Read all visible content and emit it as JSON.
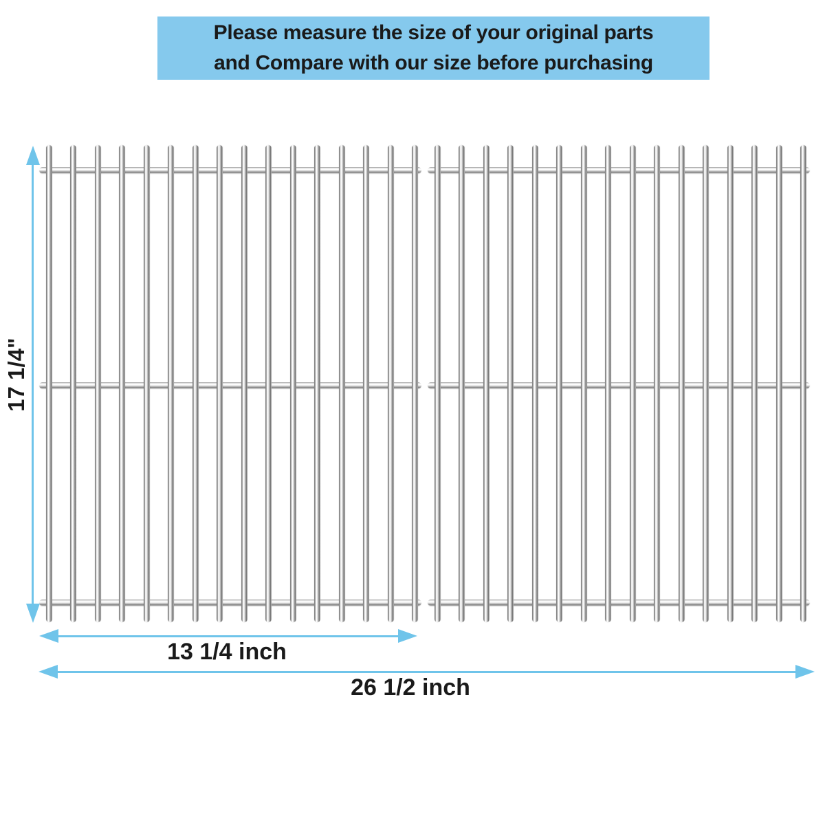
{
  "banner": {
    "line1": "Please measure the size of your original parts",
    "line2": "and Compare with our size before purchasing"
  },
  "dimensions": {
    "height_label": "17 1/4\"",
    "left_width_label": "13 1/4 inch",
    "total_width_label": "26 1/2 inch"
  },
  "grates": {
    "count": 2,
    "rods_per_grate": 16,
    "crossbars_per_grate": 3
  },
  "colors": {
    "banner_bg": "#85C9ED",
    "dimension_blue": "#6FC4EA",
    "text_dark": "#1a1a1a"
  }
}
